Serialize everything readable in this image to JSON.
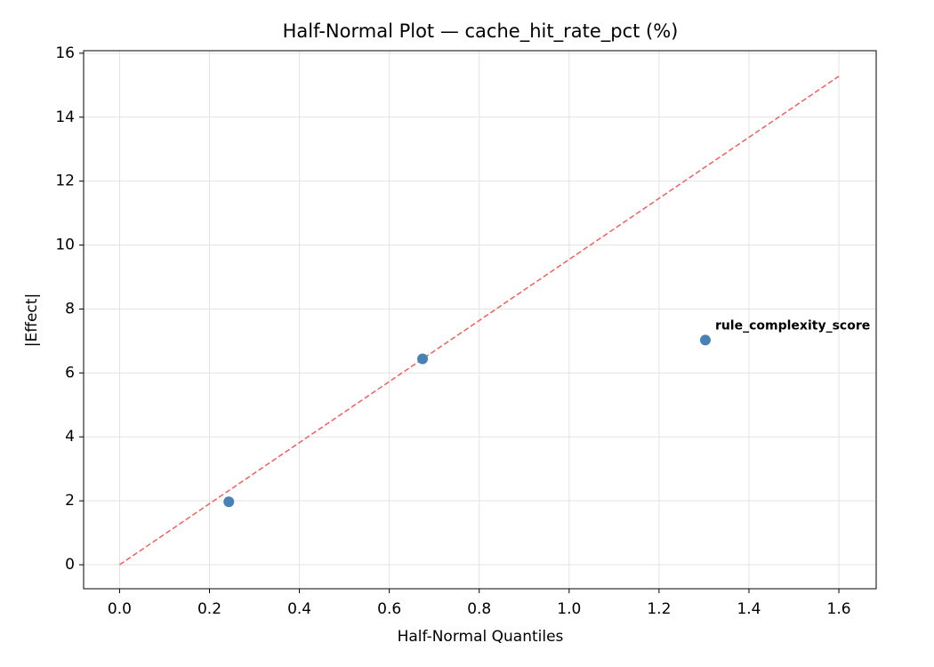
{
  "chart_data": {
    "type": "scatter",
    "title": "Half-Normal Plot — cache_hit_rate_pct (%)",
    "x_label": "Half-Normal Quantiles",
    "y_label": "|Effect|",
    "x": [
      0.243,
      0.674,
      1.303
    ],
    "values": [
      1.97,
      6.44,
      7.03
    ],
    "labels": [
      null,
      null,
      "rule_complexity_score"
    ],
    "color": "#4682b4",
    "label_color": "#ff0000",
    "reference_line": {
      "x": [
        0,
        1.6
      ],
      "y": [
        0,
        15.28
      ],
      "color": "#f0605d"
    },
    "xlim": [
      -0.08,
      1.683
    ],
    "ylim": [
      -0.75,
      16.08
    ],
    "xticks": [
      {
        "value": 0,
        "label": "0.0"
      },
      0.2,
      0.4,
      0.6,
      0.8,
      {
        "value": 1,
        "label": "1.0"
      },
      1.2,
      1.4,
      1.6
    ],
    "yticks": [
      0,
      2,
      4,
      6,
      8,
      10,
      12,
      14,
      16
    ],
    "grid": true
  }
}
